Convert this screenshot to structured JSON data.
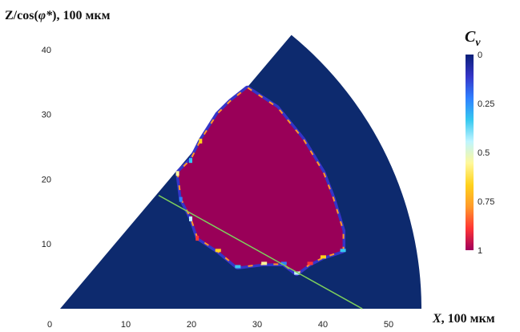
{
  "chart_data": {
    "type": "heatmap",
    "xlabel": {
      "symbol": "X",
      "unit": ", 100 мкм"
    },
    "ylabel": {
      "prefix": "Z/cos(",
      "symbol": "φ*",
      "suffix": "), 100 мкм"
    },
    "x_ticks": [
      "0",
      "10",
      "20",
      "30",
      "40",
      "50"
    ],
    "y_ticks": [
      "10",
      "20",
      "30",
      "40"
    ],
    "xlim": [
      0,
      58
    ],
    "ylim": [
      0,
      43
    ],
    "colorbar": {
      "title_symbol": "C",
      "title_sub": "v",
      "range": [
        0,
        1
      ],
      "ticks": [
        "0",
        "0.25",
        "0.5",
        "0.75",
        "1"
      ],
      "colors": [
        "#0a1f78",
        "#3535c8",
        "#2f80ff",
        "#35c8f0",
        "#bff5ff",
        "#fff89a",
        "#ffd21c",
        "#ff9a2a",
        "#ff3535",
        "#a0005c"
      ]
    },
    "outer_sector": {
      "color": "#0d2a6e",
      "left_edge": [
        [
          0,
          0
        ],
        [
          35,
          42
        ]
      ],
      "arc_center": [
        0,
        0
      ],
      "arc_radius": 55,
      "value": 0
    },
    "inner_region": {
      "color": "#990058",
      "value": 1,
      "boundary": [
        [
          28.5,
          34
        ],
        [
          33,
          31
        ],
        [
          37,
          26
        ],
        [
          40,
          21
        ],
        [
          41.5,
          17
        ],
        [
          43,
          12
        ],
        [
          43,
          9
        ],
        [
          40,
          8
        ],
        [
          38,
          7
        ],
        [
          36,
          5.5
        ],
        [
          34,
          7
        ],
        [
          31,
          7
        ],
        [
          27,
          6.5
        ],
        [
          24,
          9
        ],
        [
          21,
          11
        ],
        [
          20,
          14
        ],
        [
          18.5,
          17
        ],
        [
          18,
          21
        ],
        [
          20,
          23
        ],
        [
          21.5,
          26
        ],
        [
          24,
          30
        ],
        [
          26,
          32
        ]
      ]
    },
    "green_line": {
      "color": "#7ed05c",
      "points": [
        [
          15,
          17.5
        ],
        [
          46,
          0
        ]
      ]
    }
  }
}
